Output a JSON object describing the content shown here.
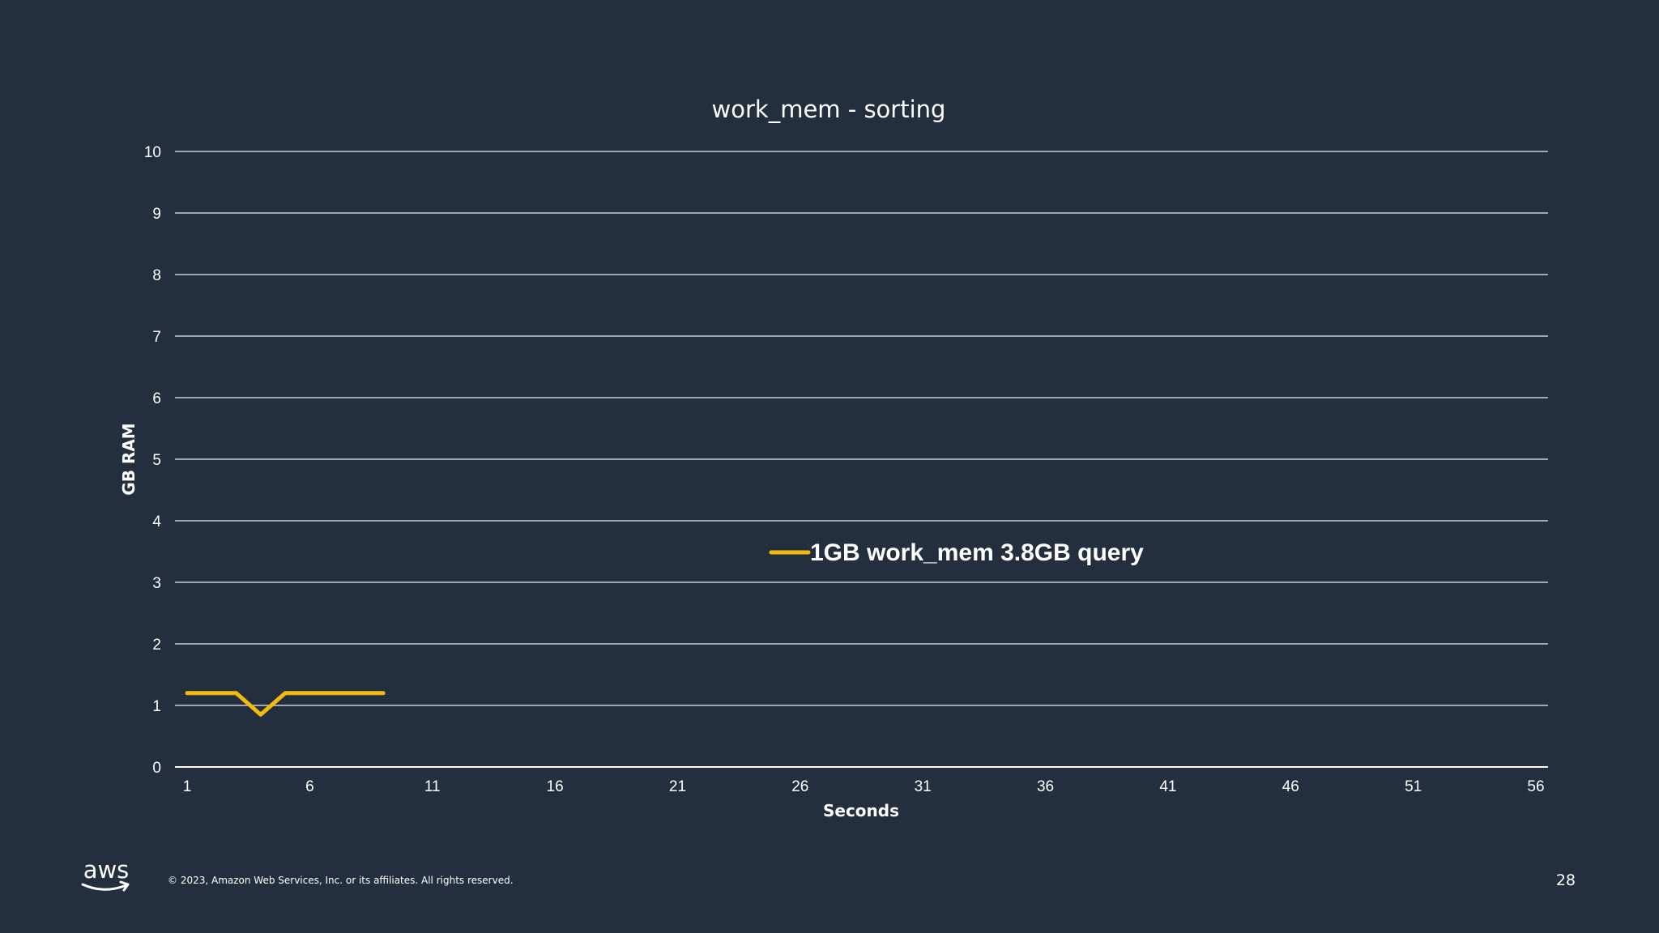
{
  "slide": {
    "background": "#232f3e",
    "footer": {
      "logo_text": "aws",
      "copyright": "© 2023, Amazon Web Services, Inc. or its affiliates. All rights reserved.",
      "page_number": "28"
    }
  },
  "chart_data": {
    "type": "line",
    "title": "work_mem - sorting",
    "xlabel": "Seconds",
    "ylabel": "GB RAM",
    "x_tick_labels": [
      "1",
      "6",
      "11",
      "16",
      "21",
      "26",
      "31",
      "36",
      "41",
      "46",
      "51",
      "56"
    ],
    "y_tick_labels": [
      "0",
      "1",
      "2",
      "3",
      "4",
      "5",
      "6",
      "7",
      "8",
      "9",
      "10"
    ],
    "xlim": [
      1,
      56
    ],
    "ylim": [
      0,
      10
    ],
    "grid": true,
    "legend_position": "center",
    "series": [
      {
        "name": "1GB work_mem  3.8GB query",
        "color": "#f2b90f",
        "x": [
          1,
          2,
          3,
          4,
          5,
          6,
          7,
          8,
          9
        ],
        "y": [
          1.2,
          1.2,
          1.2,
          0.85,
          1.2,
          1.2,
          1.2,
          1.2,
          1.2
        ]
      }
    ]
  }
}
